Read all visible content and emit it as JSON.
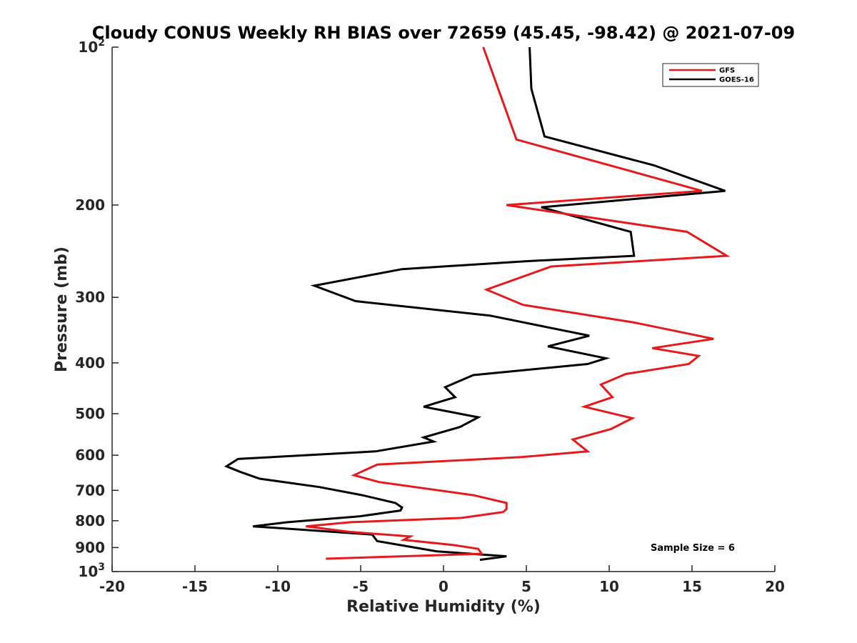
{
  "chart_data": {
    "type": "line",
    "title": "Cloudy CONUS Weekly RH BIAS over 72659 (45.45, -98.42) @ 2021-07-09",
    "xlabel": "Relative Humidity (%)",
    "ylabel": "Pressure (mb)",
    "xlim": [
      -20,
      20
    ],
    "ylim": [
      100,
      1000
    ],
    "y_scale": "log",
    "y_reversed": true,
    "x_ticks": [
      "-20",
      "-15",
      "-10",
      "-5",
      "0",
      "5",
      "10",
      "15",
      "20"
    ],
    "y_ticks": [
      {
        "value": 100,
        "label": "10",
        "sup": "2"
      },
      {
        "value": 200,
        "label": "200",
        "sup": ""
      },
      {
        "value": 300,
        "label": "300",
        "sup": ""
      },
      {
        "value": 400,
        "label": "400",
        "sup": ""
      },
      {
        "value": 500,
        "label": "500",
        "sup": ""
      },
      {
        "value": 600,
        "label": "600",
        "sup": ""
      },
      {
        "value": 700,
        "label": "700",
        "sup": ""
      },
      {
        "value": 800,
        "label": "800",
        "sup": ""
      },
      {
        "value": 900,
        "label": "900",
        "sup": ""
      },
      {
        "value": 1000,
        "label": "10",
        "sup": "3"
      }
    ],
    "grid": false,
    "legend_position": "top-right",
    "annotation": "Sample Size = 6",
    "series": [
      {
        "name": "GFS",
        "color": "#e41a1c",
        "points": [
          {
            "x": 2.4,
            "y": 100
          },
          {
            "x": 4.4,
            "y": 150
          },
          {
            "x": 15.6,
            "y": 188
          },
          {
            "x": 3.8,
            "y": 200
          },
          {
            "x": 14.7,
            "y": 225
          },
          {
            "x": 17.1,
            "y": 250
          },
          {
            "x": 6.5,
            "y": 262
          },
          {
            "x": 2.6,
            "y": 290
          },
          {
            "x": 4.8,
            "y": 310
          },
          {
            "x": 11.5,
            "y": 335
          },
          {
            "x": 16.3,
            "y": 360
          },
          {
            "x": 12.6,
            "y": 375
          },
          {
            "x": 15.4,
            "y": 388
          },
          {
            "x": 14.8,
            "y": 402
          },
          {
            "x": 11.0,
            "y": 420
          },
          {
            "x": 9.5,
            "y": 440
          },
          {
            "x": 10.2,
            "y": 465
          },
          {
            "x": 8.5,
            "y": 485
          },
          {
            "x": 11.4,
            "y": 510
          },
          {
            "x": 10.1,
            "y": 535
          },
          {
            "x": 7.8,
            "y": 560
          },
          {
            "x": 8.7,
            "y": 590
          },
          {
            "x": 4.7,
            "y": 605
          },
          {
            "x": -4.0,
            "y": 625
          },
          {
            "x": -5.4,
            "y": 655
          },
          {
            "x": -3.9,
            "y": 675
          },
          {
            "x": 1.8,
            "y": 715
          },
          {
            "x": 3.8,
            "y": 740
          },
          {
            "x": 3.8,
            "y": 760
          },
          {
            "x": 3.6,
            "y": 770
          },
          {
            "x": 1.1,
            "y": 790
          },
          {
            "x": -5.6,
            "y": 805
          },
          {
            "x": -8.3,
            "y": 820
          },
          {
            "x": -5.7,
            "y": 840
          },
          {
            "x": -2.0,
            "y": 857
          },
          {
            "x": -2.4,
            "y": 870
          },
          {
            "x": 0.6,
            "y": 890
          },
          {
            "x": 2.1,
            "y": 905
          },
          {
            "x": 2.3,
            "y": 925
          },
          {
            "x": -7.1,
            "y": 945
          }
        ]
      },
      {
        "name": "GOES-16",
        "color": "#000000",
        "points": [
          {
            "x": 5.2,
            "y": 100
          },
          {
            "x": 5.3,
            "y": 120
          },
          {
            "x": 6.1,
            "y": 148
          },
          {
            "x": 12.7,
            "y": 168
          },
          {
            "x": 17.0,
            "y": 188
          },
          {
            "x": 5.9,
            "y": 202
          },
          {
            "x": 11.3,
            "y": 225
          },
          {
            "x": 11.5,
            "y": 250
          },
          {
            "x": 5.0,
            "y": 256
          },
          {
            "x": -2.5,
            "y": 265
          },
          {
            "x": -7.8,
            "y": 285
          },
          {
            "x": -5.3,
            "y": 305
          },
          {
            "x": 2.8,
            "y": 325
          },
          {
            "x": 8.8,
            "y": 355
          },
          {
            "x": 6.3,
            "y": 372
          },
          {
            "x": 9.8,
            "y": 392
          },
          {
            "x": 8.7,
            "y": 402
          },
          {
            "x": 1.8,
            "y": 422
          },
          {
            "x": 0.1,
            "y": 445
          },
          {
            "x": 0.7,
            "y": 465
          },
          {
            "x": -1.2,
            "y": 485
          },
          {
            "x": 2.1,
            "y": 508
          },
          {
            "x": 1.0,
            "y": 530
          },
          {
            "x": -1.2,
            "y": 555
          },
          {
            "x": -0.6,
            "y": 565
          },
          {
            "x": -4.1,
            "y": 590
          },
          {
            "x": -12.4,
            "y": 610
          },
          {
            "x": -13.1,
            "y": 630
          },
          {
            "x": -12.3,
            "y": 645
          },
          {
            "x": -11.1,
            "y": 665
          },
          {
            "x": -7.5,
            "y": 690
          },
          {
            "x": -4.9,
            "y": 715
          },
          {
            "x": -2.9,
            "y": 740
          },
          {
            "x": -2.5,
            "y": 755
          },
          {
            "x": -2.6,
            "y": 765
          },
          {
            "x": -5.1,
            "y": 785
          },
          {
            "x": -9.4,
            "y": 805
          },
          {
            "x": -11.5,
            "y": 820
          },
          {
            "x": -4.3,
            "y": 850
          },
          {
            "x": -4.0,
            "y": 875
          },
          {
            "x": -0.4,
            "y": 915
          },
          {
            "x": 3.8,
            "y": 935
          },
          {
            "x": 2.2,
            "y": 950
          }
        ]
      }
    ]
  }
}
